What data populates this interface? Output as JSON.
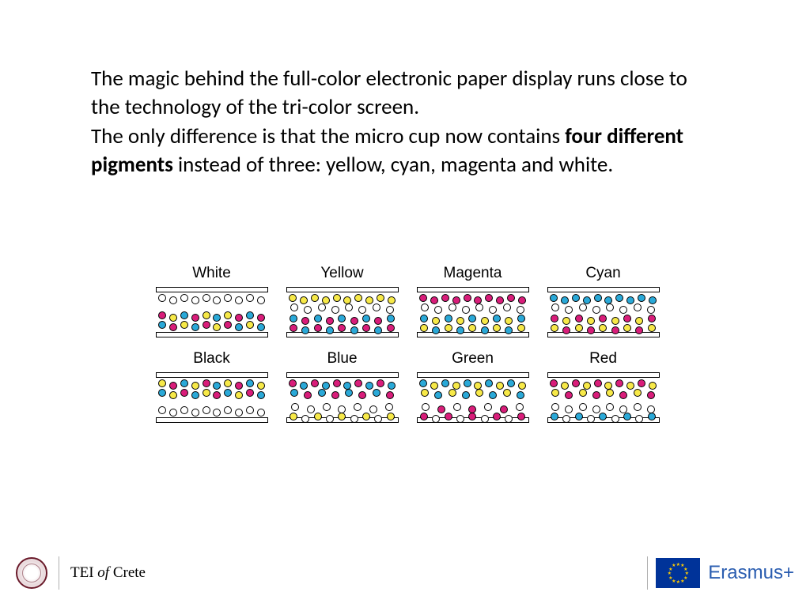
{
  "text": {
    "p1": "The magic behind the full-color electronic paper display runs close to the technology of the tri-color screen.",
    "p2a": "The only difference is that the micro cup now contains ",
    "p2bold": "four different pigments",
    "p2b": " instead of three: yellow, cyan, magenta and white."
  },
  "colors": {
    "white": "#ffffff",
    "yellow": "#f7e948",
    "magenta": "#d91d7a",
    "cyan": "#2aa9d8",
    "stroke": "#000000",
    "text": "#000000",
    "eu_blue": "#003399",
    "eu_gold": "#ffcc00",
    "erasmus_blue": "#2a5db0",
    "seal": "#6a1a2a"
  },
  "diagram": {
    "label_fontsize": 19,
    "dot_diameter": 10,
    "plate_height": 7,
    "cells": [
      {
        "label": "White",
        "top": [
          "w",
          "w",
          "w",
          "w",
          "w",
          "w",
          "w",
          "w",
          "w",
          "w"
        ],
        "mid": [],
        "bottom_upper": [
          "m",
          "y",
          "c",
          "m",
          "y",
          "c",
          "y",
          "m",
          "c",
          "m"
        ],
        "bottom_lower": [
          "c",
          "m",
          "y",
          "c",
          "m",
          "y",
          "m",
          "c",
          "y",
          "c"
        ]
      },
      {
        "label": "Yellow",
        "top": [
          "y",
          "y",
          "y",
          "y",
          "y",
          "y",
          "y",
          "y",
          "y",
          "y"
        ],
        "mid": [
          "w",
          "w",
          "w",
          "w",
          "w",
          "w",
          "w",
          "w"
        ],
        "bottom_upper": [
          "c",
          "m",
          "c",
          "m",
          "c",
          "m",
          "c",
          "m",
          "c"
        ],
        "bottom_lower": [
          "m",
          "c",
          "m",
          "c",
          "m",
          "c",
          "m",
          "c",
          "m"
        ]
      },
      {
        "label": "Magenta",
        "top": [
          "m",
          "m",
          "m",
          "m",
          "m",
          "m",
          "m",
          "m",
          "m",
          "m"
        ],
        "mid": [
          "w",
          "w",
          "w",
          "w",
          "w",
          "w",
          "w",
          "w"
        ],
        "bottom_upper": [
          "c",
          "y",
          "c",
          "y",
          "c",
          "y",
          "c",
          "y",
          "c"
        ],
        "bottom_lower": [
          "y",
          "c",
          "y",
          "c",
          "y",
          "c",
          "y",
          "c",
          "y"
        ]
      },
      {
        "label": "Cyan",
        "top": [
          "c",
          "c",
          "c",
          "c",
          "c",
          "c",
          "c",
          "c",
          "c",
          "c"
        ],
        "mid": [
          "w",
          "w",
          "w",
          "w",
          "w",
          "w",
          "w",
          "w"
        ],
        "bottom_upper": [
          "m",
          "y",
          "m",
          "y",
          "m",
          "y",
          "m",
          "y",
          "m"
        ],
        "bottom_lower": [
          "y",
          "m",
          "y",
          "m",
          "y",
          "m",
          "y",
          "m",
          "y"
        ]
      },
      {
        "label": "Black",
        "top": [
          "y",
          "m",
          "c",
          "y",
          "m",
          "c",
          "y",
          "m",
          "c",
          "y"
        ],
        "top2": [
          "c",
          "y",
          "m",
          "c",
          "y",
          "m",
          "c",
          "y",
          "m",
          "c"
        ],
        "mid": [],
        "bottom_upper": [],
        "bottom_lower": [
          "w",
          "w",
          "w",
          "w",
          "w",
          "w",
          "w",
          "w",
          "w",
          "w"
        ]
      },
      {
        "label": "Blue",
        "top": [
          "m",
          "c",
          "m",
          "c",
          "m",
          "c",
          "m",
          "c",
          "m",
          "c"
        ],
        "top2": [
          "c",
          "m",
          "c",
          "m",
          "c",
          "m",
          "c",
          "m"
        ],
        "mid": [],
        "bottom_upper": [
          "w",
          "w",
          "w",
          "w",
          "w",
          "w",
          "w"
        ],
        "bottom_lower": [
          "y",
          "w",
          "y",
          "w",
          "y",
          "w",
          "y",
          "w",
          "y"
        ]
      },
      {
        "label": "Green",
        "top": [
          "c",
          "y",
          "c",
          "y",
          "c",
          "y",
          "c",
          "y",
          "c",
          "y"
        ],
        "top2": [
          "y",
          "c",
          "y",
          "c",
          "y",
          "c",
          "y",
          "c"
        ],
        "mid": [],
        "bottom_upper": [
          "w",
          "m",
          "w",
          "m",
          "w",
          "m",
          "w"
        ],
        "bottom_lower": [
          "m",
          "w",
          "m",
          "w",
          "m",
          "w",
          "m",
          "w",
          "m"
        ]
      },
      {
        "label": "Red",
        "top": [
          "m",
          "y",
          "m",
          "y",
          "m",
          "y",
          "m",
          "y",
          "m",
          "y"
        ],
        "top2": [
          "y",
          "m",
          "y",
          "m",
          "y",
          "m",
          "y",
          "m"
        ],
        "mid": [],
        "bottom_upper": [
          "w",
          "w",
          "w",
          "w",
          "w",
          "w",
          "w",
          "w"
        ],
        "bottom_lower": [
          "c",
          "w",
          "c",
          "w",
          "c",
          "w",
          "c",
          "w",
          "c"
        ]
      }
    ]
  },
  "footer": {
    "tei_a": "TEI ",
    "tei_i": "of",
    "tei_b": " Crete",
    "erasmus": "Erasmus+"
  }
}
